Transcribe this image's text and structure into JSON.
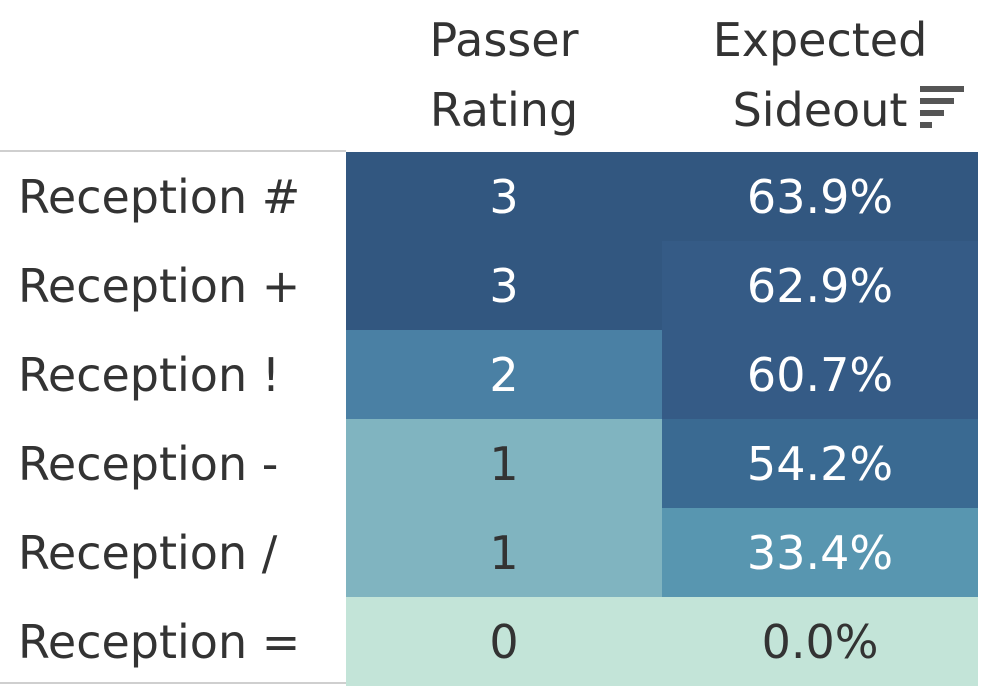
{
  "header": {
    "passer_line1": "Passer",
    "passer_line2": "Rating",
    "sideout_line1": "Expected",
    "sideout_line2": "Sideout"
  },
  "sort_icon": "sort-descending-icon",
  "colors": {
    "darkest": "#325780",
    "dark": "#355b86",
    "mid_dark": "#3a6a92",
    "mid": "#4a80a4",
    "mid_light": "#5896b0",
    "light": "#80b4c0",
    "lightest": "#c3e4d8",
    "text_dark": "#333333",
    "text_light": "#ffffff"
  },
  "chart_data": {
    "type": "table",
    "columns": [
      "Passer Rating",
      "Expected Sideout"
    ],
    "rows": [
      {
        "label": "Reception #",
        "passer_rating": "3",
        "expected_sideout": "63.9%",
        "passer_rating_value": 3,
        "expected_sideout_value": 63.9
      },
      {
        "label": "Reception +",
        "passer_rating": "3",
        "expected_sideout": "62.9%",
        "passer_rating_value": 3,
        "expected_sideout_value": 62.9
      },
      {
        "label": "Reception !",
        "passer_rating": "2",
        "expected_sideout": "60.7%",
        "passer_rating_value": 2,
        "expected_sideout_value": 60.7
      },
      {
        "label": "Reception -",
        "passer_rating": "1",
        "expected_sideout": "54.2%",
        "passer_rating_value": 1,
        "expected_sideout_value": 54.2
      },
      {
        "label": "Reception /",
        "passer_rating": "1",
        "expected_sideout": "33.4%",
        "passer_rating_value": 1,
        "expected_sideout_value": 33.4
      },
      {
        "label": "Reception =",
        "passer_rating": "0",
        "expected_sideout": "0.0%",
        "passer_rating_value": 0,
        "expected_sideout_value": 0.0
      }
    ],
    "sorted_by": "Expected Sideout",
    "sort_order": "descending"
  }
}
